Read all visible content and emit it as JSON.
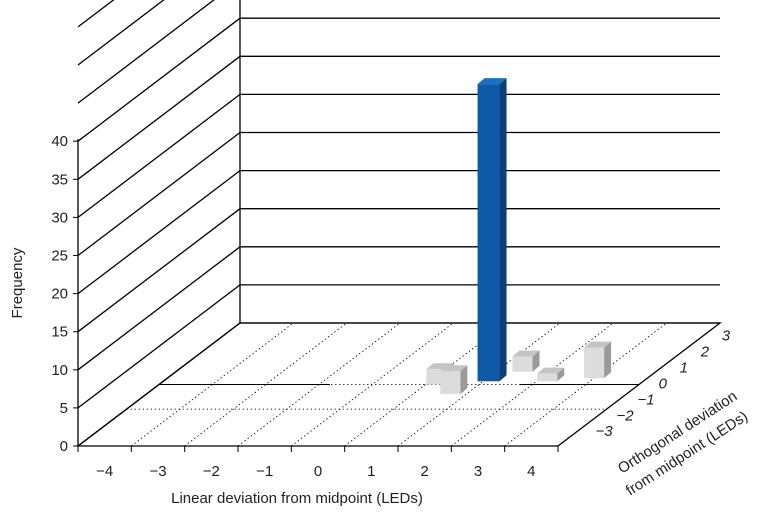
{
  "chart_data": {
    "type": "bar",
    "view": "3d",
    "title": "",
    "xlabel": "Linear deviation from midpoint (LEDs)",
    "ylabel": "Frequency",
    "zlabel_line1": "Orthogonal deviation",
    "zlabel_line2": "from midpoint (LEDs)",
    "x_ticks": [
      "−4",
      "−3",
      "−2",
      "−1",
      "0",
      "1",
      "2",
      "3",
      "4"
    ],
    "y_ticks": [
      "0",
      "5",
      "10",
      "15",
      "20",
      "25",
      "30",
      "35",
      "40"
    ],
    "z_ticks": [
      "−3",
      "−2",
      "−1",
      "0",
      "1",
      "2",
      "3"
    ],
    "ylim": [
      0,
      40
    ],
    "gridlines": true,
    "legend": "none",
    "colors": {
      "highlight": "#0e5aa7",
      "other": "#dcdcdc",
      "grid": "#000000"
    },
    "bars": [
      {
        "x": 0.7,
        "z": 0,
        "value": 2,
        "highlight": false
      },
      {
        "x": 1.2,
        "z": -0.6,
        "value": 3,
        "highlight": false
      },
      {
        "x": 2.0,
        "z": 0.8,
        "value": 2,
        "highlight": false
      },
      {
        "x": 1.6,
        "z": 0.2,
        "value": 39,
        "highlight": true
      },
      {
        "x": 2.7,
        "z": 0.2,
        "value": 1,
        "highlight": false
      },
      {
        "x": 3.5,
        "z": 0.4,
        "value": 4,
        "highlight": false
      }
    ]
  }
}
